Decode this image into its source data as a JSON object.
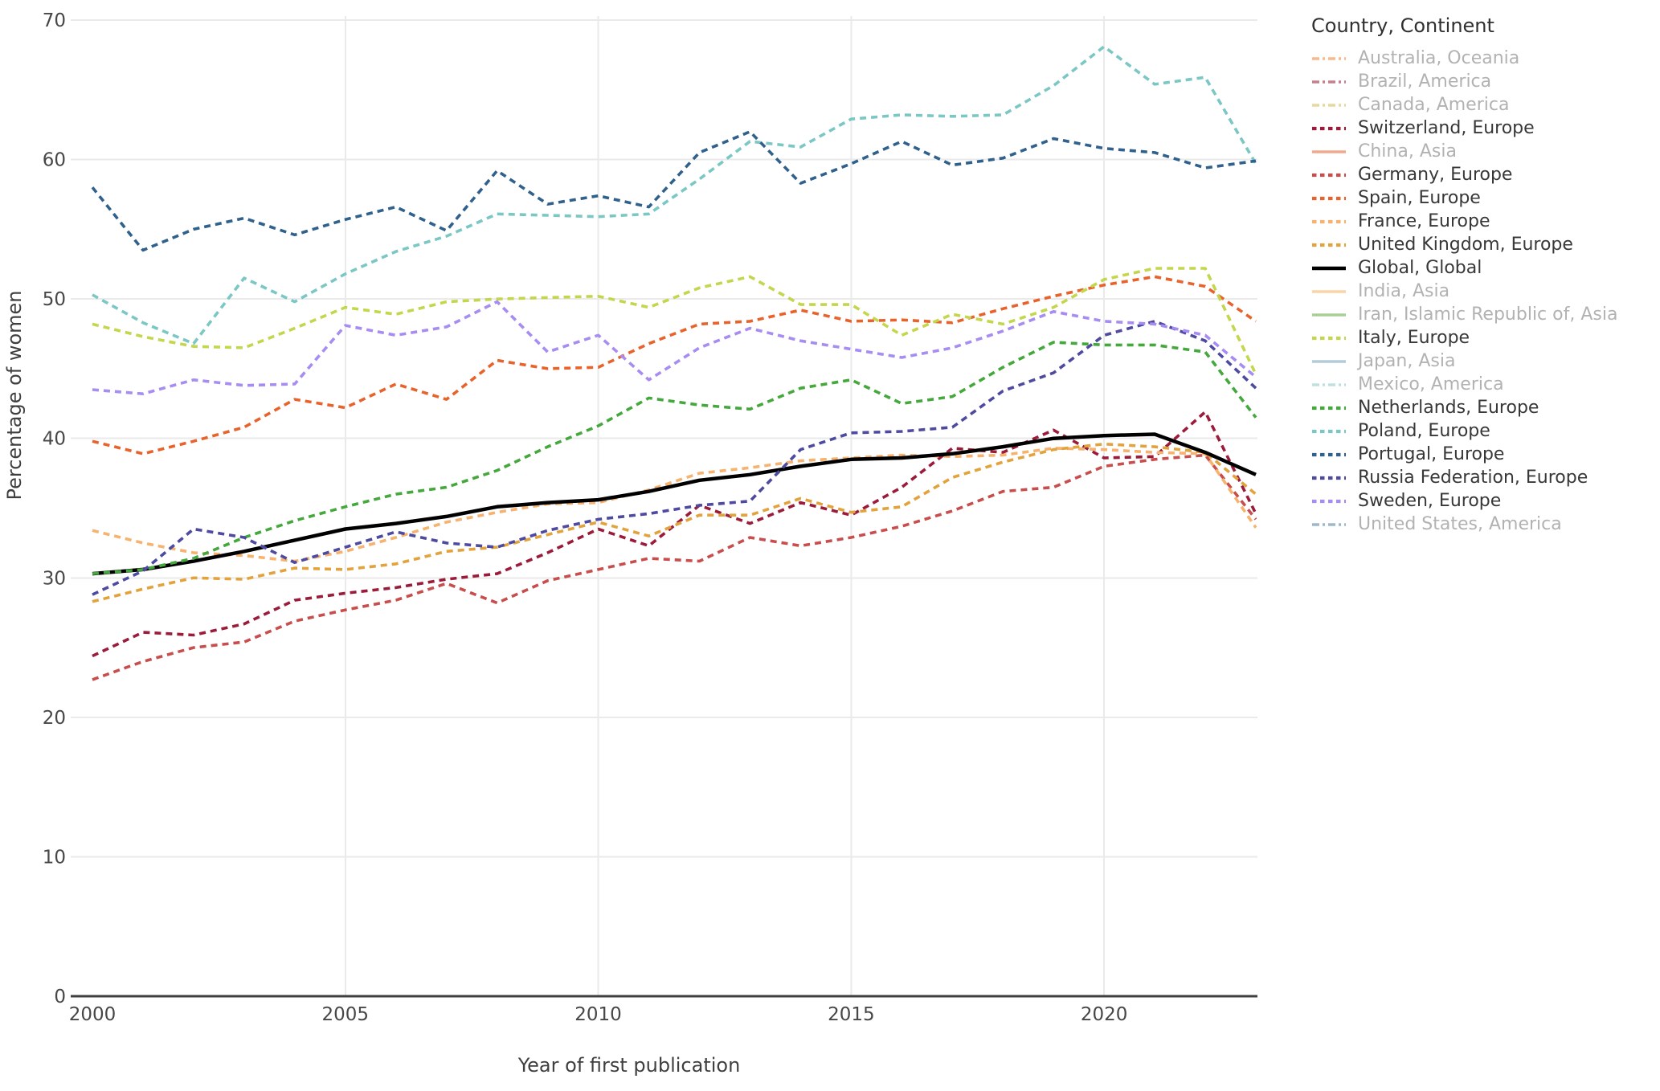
{
  "chart_data": {
    "type": "line",
    "title": "",
    "xlabel": "Year of first publication",
    "ylabel": "Percentage of women",
    "x_ticks": [
      2000,
      2005,
      2010,
      2015,
      2020
    ],
    "x_gridlines": [
      2005,
      2010,
      2015,
      2020
    ],
    "y_ticks": [
      0,
      10,
      20,
      30,
      40,
      50,
      60,
      70
    ],
    "xlim": [
      2000,
      2023
    ],
    "ylim": [
      0,
      71
    ],
    "grid": true,
    "legend_position": "right",
    "colors": {
      "grid": "#eaeaea",
      "axis_line": "#3f3f3f",
      "tick_text": "#474747",
      "title_text": "#3f3f3f",
      "legend_active_text": "#383838",
      "legend_muted_text": "#b2b2b2"
    },
    "legend": {
      "title": "Country, Continent",
      "entries": [
        {
          "label": "Australia, Oceania",
          "color": "#f9b98a",
          "dash": "dashdot",
          "muted": true
        },
        {
          "label": "Brazil, America",
          "color": "#c5808d",
          "dash": "dashdot",
          "muted": true
        },
        {
          "label": "Canada, America",
          "color": "#e8d79e",
          "dash": "dashdot",
          "muted": true
        },
        {
          "label": "Switzerland, Europe",
          "color": "#9b1b3b",
          "dash": "dot",
          "muted": false
        },
        {
          "label": "China, Asia",
          "color": "#f2a88c",
          "dash": "solid",
          "muted": true
        },
        {
          "label": "Germany, Europe",
          "color": "#c84d4d",
          "dash": "dot",
          "muted": false
        },
        {
          "label": "Spain, Europe",
          "color": "#e8632c",
          "dash": "dot",
          "muted": false
        },
        {
          "label": "France, Europe",
          "color": "#f6b26e",
          "dash": "dot",
          "muted": false
        },
        {
          "label": "United Kingdom, Europe",
          "color": "#e2a33d",
          "dash": "dot",
          "muted": false
        },
        {
          "label": "Global, Global",
          "color": "#000000",
          "dash": "solid",
          "muted": false
        },
        {
          "label": "India, Asia",
          "color": "#fad4a4",
          "dash": "solid",
          "muted": true
        },
        {
          "label": "Iran, Islamic Republic of, Asia",
          "color": "#a9cf98",
          "dash": "solid",
          "muted": true
        },
        {
          "label": "Italy, Europe",
          "color": "#c4d64c",
          "dash": "dot",
          "muted": false
        },
        {
          "label": "Japan, Asia",
          "color": "#b3ccd8",
          "dash": "solid",
          "muted": true
        },
        {
          "label": "Mexico, America",
          "color": "#bfe0e1",
          "dash": "dashdot",
          "muted": true
        },
        {
          "label": "Netherlands, Europe",
          "color": "#44a83c",
          "dash": "dot",
          "muted": false
        },
        {
          "label": "Poland, Europe",
          "color": "#7ac7c4",
          "dash": "dot",
          "muted": false
        },
        {
          "label": "Portugal, Europe",
          "color": "#30618c",
          "dash": "dot",
          "muted": false
        },
        {
          "label": "Russia Federation, Europe",
          "color": "#4d4aa0",
          "dash": "dot",
          "muted": false
        },
        {
          "label": "Sweden, Europe",
          "color": "#a78cf2",
          "dash": "dot",
          "muted": false
        },
        {
          "label": "United States, America",
          "color": "#9db8cb",
          "dash": "dashdot",
          "muted": true
        }
      ]
    },
    "x": [
      2000,
      2001,
      2002,
      2003,
      2004,
      2005,
      2006,
      2007,
      2008,
      2009,
      2010,
      2011,
      2012,
      2013,
      2014,
      2015,
      2016,
      2017,
      2018,
      2019,
      2020,
      2021,
      2022,
      2023
    ],
    "series": [
      {
        "name": "Switzerland, Europe",
        "color": "#9b1b3b",
        "dash": "dot",
        "width": 3.6,
        "values": [
          24.4,
          26.1,
          25.9,
          26.7,
          28.4,
          28.9,
          29.3,
          29.9,
          30.3,
          31.8,
          33.5,
          32.3,
          35.2,
          33.9,
          35.4,
          34.5,
          36.5,
          39.3,
          39.0,
          40.6,
          38.6,
          38.7,
          41.9,
          34.6
        ]
      },
      {
        "name": "Germany, Europe",
        "color": "#c84d4d",
        "dash": "dot",
        "width": 3.6,
        "values": [
          22.7,
          24.0,
          25.0,
          25.4,
          26.9,
          27.7,
          28.4,
          29.6,
          28.2,
          29.8,
          30.6,
          31.4,
          31.2,
          32.9,
          32.3,
          32.9,
          33.7,
          34.8,
          36.2,
          36.5,
          38.0,
          38.5,
          38.8,
          34.2
        ]
      },
      {
        "name": "Spain, Europe",
        "color": "#e8632c",
        "dash": "dot",
        "width": 3.6,
        "values": [
          39.8,
          38.9,
          39.8,
          40.8,
          42.8,
          42.2,
          43.9,
          42.8,
          45.6,
          45.0,
          45.1,
          46.8,
          48.2,
          48.4,
          49.2,
          48.4,
          48.5,
          48.3,
          49.3,
          50.2,
          51.0,
          51.6,
          50.9,
          48.4
        ]
      },
      {
        "name": "France, Europe",
        "color": "#f6b26e",
        "dash": "dot",
        "width": 3.6,
        "values": [
          33.4,
          32.5,
          31.8,
          31.6,
          31.2,
          31.9,
          32.9,
          34.0,
          34.7,
          35.3,
          35.4,
          36.3,
          37.5,
          37.9,
          38.4,
          38.6,
          38.8,
          38.7,
          38.8,
          39.3,
          39.2,
          39.0,
          38.9,
          33.6
        ]
      },
      {
        "name": "United Kingdom, Europe",
        "color": "#e2a33d",
        "dash": "dot",
        "width": 3.6,
        "values": [
          28.3,
          29.2,
          30.0,
          29.9,
          30.7,
          30.6,
          31.0,
          31.9,
          32.2,
          33.1,
          34.0,
          33.0,
          34.5,
          34.5,
          35.7,
          34.7,
          35.1,
          37.2,
          38.3,
          39.2,
          39.6,
          39.4,
          39.0,
          36.0
        ]
      },
      {
        "name": "Global, Global",
        "color": "#000000",
        "dash": "solid",
        "width": 4.5,
        "values": [
          30.3,
          30.6,
          31.2,
          31.9,
          32.7,
          33.5,
          33.9,
          34.4,
          35.1,
          35.4,
          35.6,
          36.2,
          37.0,
          37.4,
          38.0,
          38.5,
          38.6,
          38.9,
          39.4,
          40.0,
          40.2,
          40.3,
          39.0,
          37.4
        ]
      },
      {
        "name": "Italy, Europe",
        "color": "#c4d64c",
        "dash": "dot",
        "width": 3.6,
        "values": [
          48.2,
          47.3,
          46.6,
          46.5,
          47.9,
          49.4,
          48.9,
          49.8,
          50.0,
          50.1,
          50.2,
          49.4,
          50.8,
          51.6,
          49.6,
          49.6,
          47.4,
          48.9,
          48.2,
          49.4,
          51.4,
          52.2,
          52.2,
          44.6
        ]
      },
      {
        "name": "Netherlands, Europe",
        "color": "#44a83c",
        "dash": "dot",
        "width": 3.6,
        "values": [
          30.3,
          30.6,
          31.4,
          32.9,
          34.1,
          35.1,
          36.0,
          36.5,
          37.7,
          39.4,
          40.9,
          42.9,
          42.4,
          42.1,
          43.6,
          44.2,
          42.5,
          43.0,
          45.1,
          46.9,
          46.7,
          46.7,
          46.2,
          41.5
        ]
      },
      {
        "name": "Poland, Europe",
        "color": "#7ac7c4",
        "dash": "dot",
        "width": 3.6,
        "values": [
          50.3,
          48.3,
          46.8,
          51.5,
          49.8,
          51.8,
          53.4,
          54.5,
          56.1,
          56.0,
          55.9,
          56.1,
          58.6,
          61.3,
          60.9,
          62.9,
          63.2,
          63.1,
          63.2,
          65.3,
          68.1,
          65.4,
          65.9,
          59.7
        ]
      },
      {
        "name": "Portugal, Europe",
        "color": "#30618c",
        "dash": "dot",
        "width": 3.6,
        "values": [
          58.0,
          53.5,
          55.0,
          55.8,
          54.6,
          55.7,
          56.6,
          54.9,
          59.2,
          56.8,
          57.4,
          56.6,
          60.5,
          62.0,
          58.3,
          59.7,
          61.3,
          59.6,
          60.1,
          61.5,
          60.8,
          60.5,
          59.4,
          59.9
        ]
      },
      {
        "name": "Russia Federation, Europe",
        "color": "#4d4aa0",
        "dash": "dot",
        "width": 3.6,
        "values": [
          28.8,
          30.5,
          33.5,
          32.9,
          31.1,
          32.2,
          33.3,
          32.5,
          32.2,
          33.4,
          34.2,
          34.6,
          35.2,
          35.5,
          39.2,
          40.4,
          40.5,
          40.8,
          43.4,
          44.7,
          47.4,
          48.4,
          47.0,
          43.6
        ]
      },
      {
        "name": "Sweden, Europe",
        "color": "#a78cf2",
        "dash": "dot",
        "width": 3.6,
        "values": [
          43.5,
          43.2,
          44.2,
          43.8,
          43.9,
          48.1,
          47.4,
          48.0,
          49.8,
          46.2,
          47.4,
          44.2,
          46.5,
          47.9,
          47.0,
          46.4,
          45.8,
          46.5,
          47.7,
          49.1,
          48.4,
          48.2,
          47.4,
          44.4
        ]
      }
    ]
  }
}
